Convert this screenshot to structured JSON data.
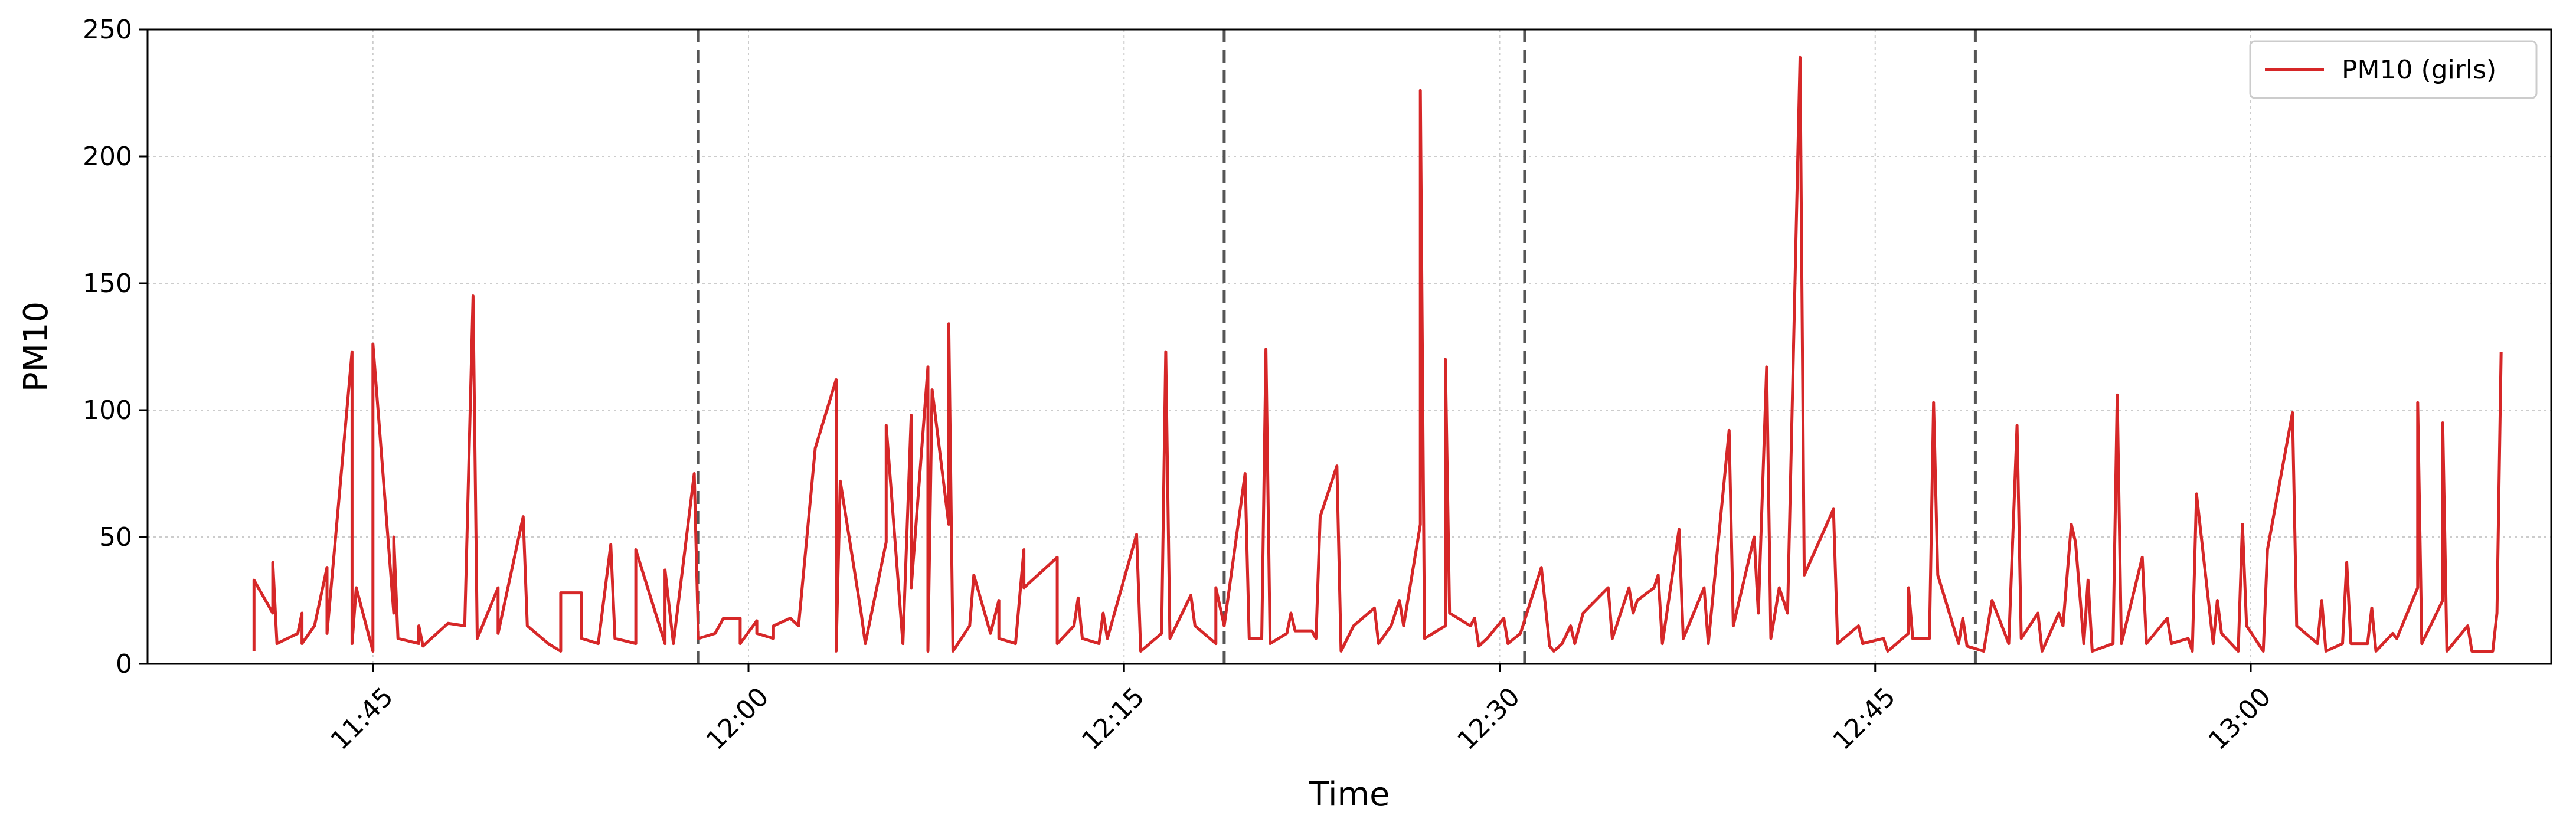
{
  "chart_data": {
    "type": "line",
    "xlabel": "Time",
    "ylabel": "PM10",
    "x_unit": "clock time (HH:MM)",
    "xlim": [
      "11:36",
      "13:12"
    ],
    "ylim": [
      0,
      250
    ],
    "x_ticks": [
      "11:45",
      "12:00",
      "12:15",
      "12:30",
      "12:45",
      "13:00"
    ],
    "y_ticks": [
      0,
      50,
      100,
      150,
      200,
      250
    ],
    "grid": true,
    "legend_position": "top-right",
    "vertical_markers": [
      "11:58",
      "12:19",
      "12:31",
      "12:49"
    ],
    "series": [
      {
        "name": "PM10 (girls)",
        "color": "#d62728",
        "points": [
          [
            "11:40:15",
            5
          ],
          [
            "11:40:15",
            33
          ],
          [
            "11:41:00",
            20
          ],
          [
            "11:41:00",
            40
          ],
          [
            "11:41:10",
            8
          ],
          [
            "11:42:00",
            12
          ],
          [
            "11:42:10",
            20
          ],
          [
            "11:42:10",
            8
          ],
          [
            "11:42:40",
            15
          ],
          [
            "11:43:10",
            38
          ],
          [
            "11:43:10",
            12
          ],
          [
            "11:44:10",
            123
          ],
          [
            "11:44:10",
            8
          ],
          [
            "11:44:20",
            30
          ],
          [
            "11:45:00",
            5
          ],
          [
            "11:45:00",
            126
          ],
          [
            "11:45:50",
            20
          ],
          [
            "11:45:50",
            50
          ],
          [
            "11:46:00",
            10
          ],
          [
            "11:46:50",
            8
          ],
          [
            "11:46:50",
            15
          ],
          [
            "11:47:00",
            7
          ],
          [
            "11:48:00",
            16
          ],
          [
            "11:48:40",
            15
          ],
          [
            "11:49:00",
            145
          ],
          [
            "11:49:10",
            10
          ],
          [
            "11:50:00",
            30
          ],
          [
            "11:50:00",
            12
          ],
          [
            "11:51:00",
            58
          ],
          [
            "11:51:10",
            15
          ],
          [
            "11:52:00",
            8
          ],
          [
            "11:52:30",
            5
          ],
          [
            "11:52:30",
            28
          ],
          [
            "11:53:20",
            28
          ],
          [
            "11:53:20",
            10
          ],
          [
            "11:54:00",
            8
          ],
          [
            "11:54:30",
            47
          ],
          [
            "11:54:40",
            10
          ],
          [
            "11:55:30",
            8
          ],
          [
            "11:55:30",
            45
          ],
          [
            "11:56:40",
            8
          ],
          [
            "11:56:40",
            37
          ],
          [
            "11:57:00",
            8
          ],
          [
            "11:57:50",
            75
          ],
          [
            "11:58:00",
            10
          ],
          [
            "11:58:40",
            12
          ],
          [
            "11:59:00",
            18
          ],
          [
            "11:59:40",
            18
          ],
          [
            "11:59:40",
            8
          ],
          [
            "12:00:20",
            17
          ],
          [
            "12:00:20",
            12
          ],
          [
            "12:01:00",
            10
          ],
          [
            "12:01:00",
            15
          ],
          [
            "12:01:40",
            18
          ],
          [
            "12:02:00",
            15
          ],
          [
            "12:02:40",
            85
          ],
          [
            "12:03:30",
            112
          ],
          [
            "12:03:30",
            5
          ],
          [
            "12:03:40",
            72
          ],
          [
            "12:04:30",
            20
          ],
          [
            "12:04:40",
            8
          ],
          [
            "12:05:30",
            48
          ],
          [
            "12:05:30",
            94
          ],
          [
            "12:06:10",
            8
          ],
          [
            "12:06:30",
            98
          ],
          [
            "12:06:30",
            30
          ],
          [
            "12:07:10",
            117
          ],
          [
            "12:07:10",
            5
          ],
          [
            "12:07:20",
            108
          ],
          [
            "12:08:00",
            55
          ],
          [
            "12:08:00",
            134
          ],
          [
            "12:08:10",
            5
          ],
          [
            "12:08:50",
            15
          ],
          [
            "12:09:00",
            35
          ],
          [
            "12:09:40",
            12
          ],
          [
            "12:10:00",
            25
          ],
          [
            "12:10:00",
            10
          ],
          [
            "12:10:40",
            8
          ],
          [
            "12:11:00",
            45
          ],
          [
            "12:11:00",
            30
          ],
          [
            "12:12:20",
            42
          ],
          [
            "12:12:20",
            8
          ],
          [
            "12:13:00",
            15
          ],
          [
            "12:13:10",
            26
          ],
          [
            "12:13:20",
            10
          ],
          [
            "12:14:00",
            8
          ],
          [
            "12:14:10",
            20
          ],
          [
            "12:14:20",
            10
          ],
          [
            "12:15:30",
            51
          ],
          [
            "12:15:40",
            5
          ],
          [
            "12:16:30",
            12
          ],
          [
            "12:16:40",
            123
          ],
          [
            "12:16:50",
            10
          ],
          [
            "12:17:40",
            27
          ],
          [
            "12:17:50",
            15
          ],
          [
            "12:18:40",
            8
          ],
          [
            "12:18:40",
            30
          ],
          [
            "12:19:00",
            15
          ],
          [
            "12:19:50",
            75
          ],
          [
            "12:20:00",
            10
          ],
          [
            "12:20:30",
            10
          ],
          [
            "12:20:40",
            124
          ],
          [
            "12:20:50",
            8
          ],
          [
            "12:21:30",
            12
          ],
          [
            "12:21:40",
            20
          ],
          [
            "12:21:50",
            13
          ],
          [
            "12:22:30",
            13
          ],
          [
            "12:22:40",
            10
          ],
          [
            "12:22:50",
            58
          ],
          [
            "12:23:30",
            78
          ],
          [
            "12:23:40",
            5
          ],
          [
            "12:24:10",
            15
          ],
          [
            "12:25:00",
            22
          ],
          [
            "12:25:10",
            8
          ],
          [
            "12:25:40",
            15
          ],
          [
            "12:26:00",
            25
          ],
          [
            "12:26:10",
            15
          ],
          [
            "12:26:50",
            55
          ],
          [
            "12:26:50",
            226
          ],
          [
            "12:27:00",
            10
          ],
          [
            "12:27:50",
            15
          ],
          [
            "12:27:50",
            120
          ],
          [
            "12:28:00",
            20
          ],
          [
            "12:28:50",
            15
          ],
          [
            "12:29:00",
            18
          ],
          [
            "12:29:10",
            7
          ],
          [
            "12:29:30",
            10
          ],
          [
            "12:30:10",
            18
          ],
          [
            "12:30:20",
            8
          ],
          [
            "12:30:50",
            12
          ],
          [
            "12:31:40",
            38
          ],
          [
            "12:32:00",
            7
          ],
          [
            "12:32:10",
            5
          ],
          [
            "12:32:30",
            8
          ],
          [
            "12:32:50",
            15
          ],
          [
            "12:33:00",
            8
          ],
          [
            "12:33:20",
            20
          ],
          [
            "12:34:20",
            30
          ],
          [
            "12:34:30",
            10
          ],
          [
            "12:35:10",
            30
          ],
          [
            "12:35:20",
            20
          ],
          [
            "12:35:30",
            25
          ],
          [
            "12:36:10",
            30
          ],
          [
            "12:36:20",
            35
          ],
          [
            "12:36:30",
            8
          ],
          [
            "12:37:10",
            53
          ],
          [
            "12:37:20",
            10
          ],
          [
            "12:38:10",
            30
          ],
          [
            "12:38:20",
            8
          ],
          [
            "12:39:10",
            92
          ],
          [
            "12:39:20",
            15
          ],
          [
            "12:40:10",
            50
          ],
          [
            "12:40:20",
            20
          ],
          [
            "12:40:40",
            117
          ],
          [
            "12:40:50",
            10
          ],
          [
            "12:41:10",
            30
          ],
          [
            "12:41:30",
            20
          ],
          [
            "12:42:00",
            239
          ],
          [
            "12:42:10",
            35
          ],
          [
            "12:43:20",
            61
          ],
          [
            "12:43:30",
            8
          ],
          [
            "12:44:20",
            15
          ],
          [
            "12:44:30",
            8
          ],
          [
            "12:45:20",
            10
          ],
          [
            "12:45:30",
            5
          ],
          [
            "12:46:20",
            12
          ],
          [
            "12:46:20",
            30
          ],
          [
            "12:46:30",
            10
          ],
          [
            "12:47:10",
            10
          ],
          [
            "12:47:20",
            103
          ],
          [
            "12:47:30",
            35
          ],
          [
            "12:48:20",
            8
          ],
          [
            "12:48:30",
            18
          ],
          [
            "12:48:40",
            7
          ],
          [
            "12:49:20",
            5
          ],
          [
            "12:49:40",
            25
          ],
          [
            "12:50:20",
            8
          ],
          [
            "12:50:40",
            94
          ],
          [
            "12:50:50",
            10
          ],
          [
            "12:51:30",
            20
          ],
          [
            "12:51:40",
            5
          ],
          [
            "12:52:20",
            20
          ],
          [
            "12:52:30",
            15
          ],
          [
            "12:52:50",
            55
          ],
          [
            "12:53:00",
            48
          ],
          [
            "12:53:20",
            8
          ],
          [
            "12:53:30",
            33
          ],
          [
            "12:53:40",
            5
          ],
          [
            "12:54:30",
            8
          ],
          [
            "12:54:40",
            106
          ],
          [
            "12:54:50",
            8
          ],
          [
            "12:55:40",
            42
          ],
          [
            "12:55:50",
            8
          ],
          [
            "12:56:40",
            18
          ],
          [
            "12:56:50",
            8
          ],
          [
            "12:57:30",
            10
          ],
          [
            "12:57:40",
            5
          ],
          [
            "12:57:50",
            67
          ],
          [
            "12:58:30",
            8
          ],
          [
            "12:58:40",
            25
          ],
          [
            "12:58:50",
            12
          ],
          [
            "12:59:30",
            5
          ],
          [
            "12:59:40",
            55
          ],
          [
            "12:59:50",
            15
          ],
          [
            "13:00:30",
            5
          ],
          [
            "13:00:40",
            45
          ],
          [
            "13:01:40",
            99
          ],
          [
            "13:01:50",
            15
          ],
          [
            "13:02:40",
            8
          ],
          [
            "13:02:50",
            25
          ],
          [
            "13:03:00",
            5
          ],
          [
            "13:03:40",
            8
          ],
          [
            "13:03:50",
            40
          ],
          [
            "13:04:00",
            8
          ],
          [
            "13:04:40",
            8
          ],
          [
            "13:04:50",
            22
          ],
          [
            "13:05:00",
            5
          ],
          [
            "13:05:40",
            12
          ],
          [
            "13:05:50",
            10
          ],
          [
            "13:06:40",
            30
          ],
          [
            "13:06:40",
            103
          ],
          [
            "13:06:50",
            8
          ],
          [
            "13:07:40",
            25
          ],
          [
            "13:07:40",
            95
          ],
          [
            "13:07:50",
            5
          ],
          [
            "13:08:40",
            15
          ],
          [
            "13:08:50",
            5
          ],
          [
            "13:09:40",
            5
          ],
          [
            "13:09:50",
            20
          ],
          [
            "13:10:00",
            123
          ]
        ]
      }
    ]
  }
}
